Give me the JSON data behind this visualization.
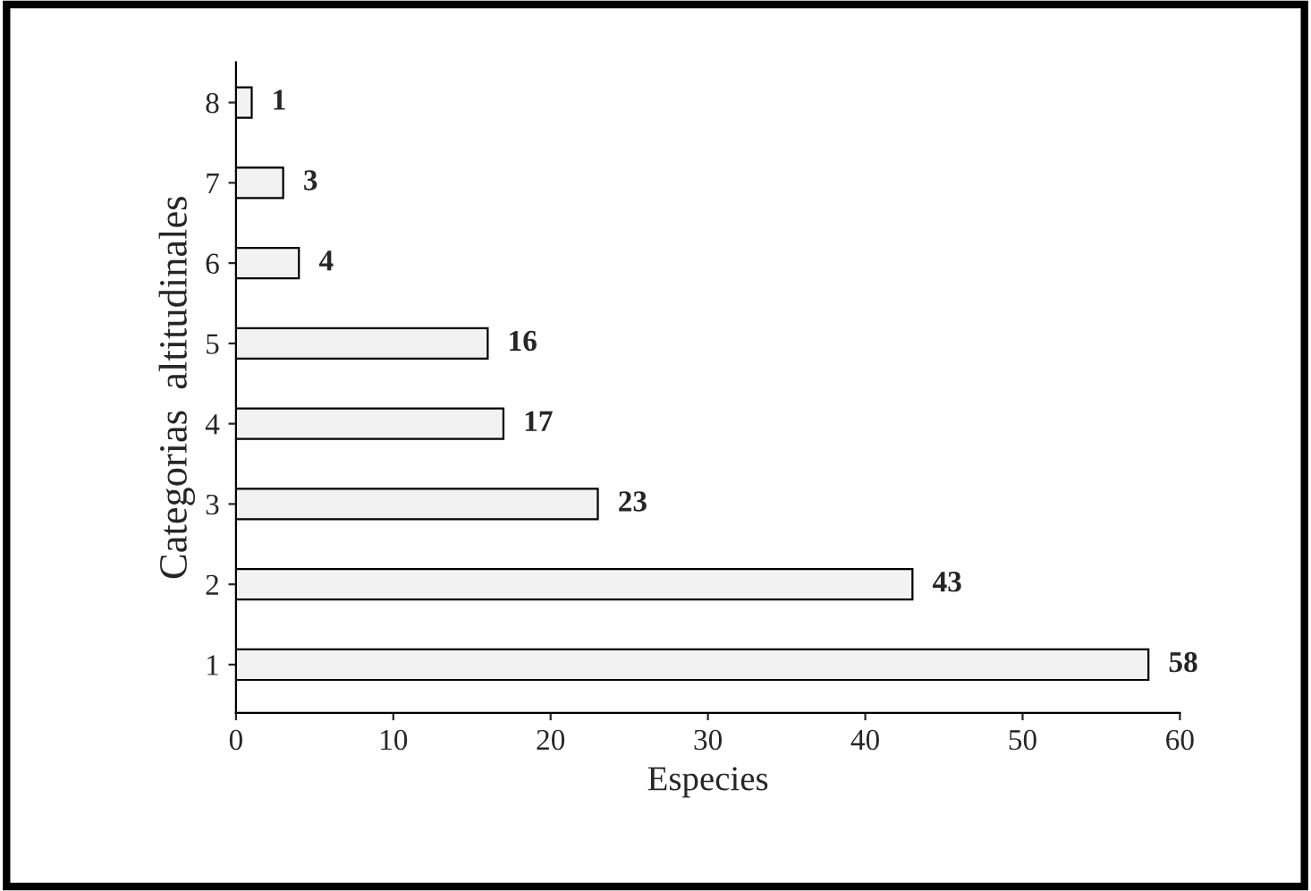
{
  "chart_data": {
    "type": "bar",
    "orientation": "horizontal",
    "xlabel": "Especies",
    "ylabel": "Categorias  altitudinales",
    "categories": [
      "8",
      "7",
      "6",
      "5",
      "4",
      "3",
      "2",
      "1"
    ],
    "values": [
      1,
      3,
      4,
      16,
      17,
      23,
      43,
      58
    ],
    "color": "#f2f2f2",
    "xlim": [
      0,
      60
    ],
    "xticks": [
      0,
      10,
      20,
      30,
      40,
      50,
      60
    ],
    "data_labels": true,
    "grid": false,
    "legend": false
  }
}
